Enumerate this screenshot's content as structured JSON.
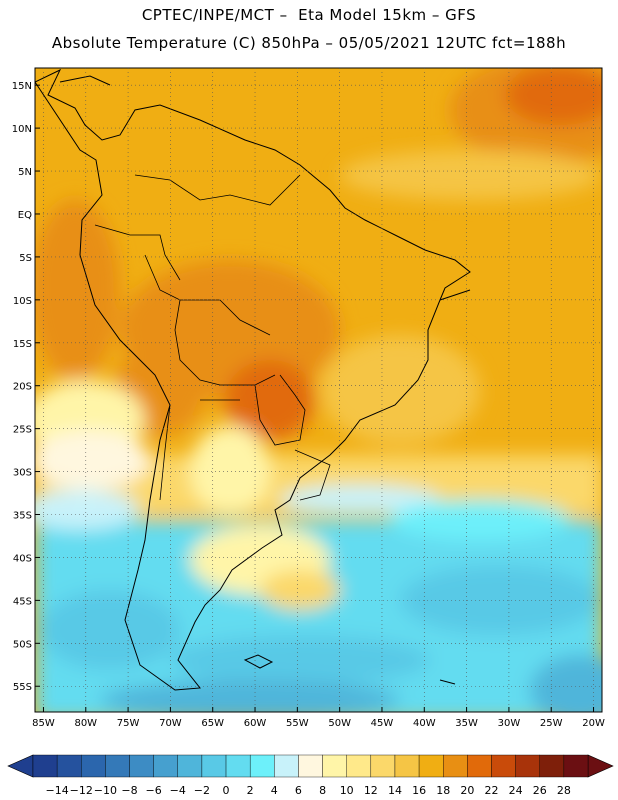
{
  "header": {
    "line1": "CPTEC/INPE/MCT –  Eta Model 15km – GFS",
    "line2": "Absolute Temperature (C) 850hPa – 05/05/2021 12UTC fct=188h"
  },
  "map": {
    "lon_range": [
      -86,
      -19
    ],
    "lat_range": [
      -58,
      17
    ],
    "lat_ticks": [
      "15N",
      "10N",
      "5N",
      "EQ",
      "5S",
      "10S",
      "15S",
      "20S",
      "25S",
      "30S",
      "35S",
      "40S",
      "45S",
      "50S",
      "55S"
    ],
    "lon_ticks": [
      "85W",
      "80W",
      "75W",
      "70W",
      "65W",
      "60W",
      "55W",
      "50W",
      "45W",
      "40W",
      "35W",
      "30W",
      "25W",
      "20W"
    ],
    "gridlines": "dotted"
  },
  "colorbar": {
    "labels": [
      "-14",
      "-12",
      "-10",
      "-8",
      "-6",
      "-4",
      "-2",
      "0",
      "2",
      "4",
      "6",
      "8",
      "10",
      "12",
      "14",
      "16",
      "18",
      "20",
      "22",
      "24",
      "26",
      "28"
    ],
    "colors": [
      "#1f3f8f",
      "#25529e",
      "#2b66ad",
      "#3479b8",
      "#3d8cc4",
      "#46a0cf",
      "#4fb5da",
      "#59c9e6",
      "#63dcf0",
      "#6df0fa",
      "#c8f2fa",
      "#fff7df",
      "#fff5a8",
      "#ffe98a",
      "#fbd86a",
      "#f5c545",
      "#f0ae13",
      "#e88f13",
      "#e16a0a",
      "#c94b0a",
      "#a8330a",
      "#7e1f0a",
      "#6b0f12"
    ],
    "low_arrow_color": "#1f3f8f",
    "high_arrow_color": "#6b0f12"
  }
}
